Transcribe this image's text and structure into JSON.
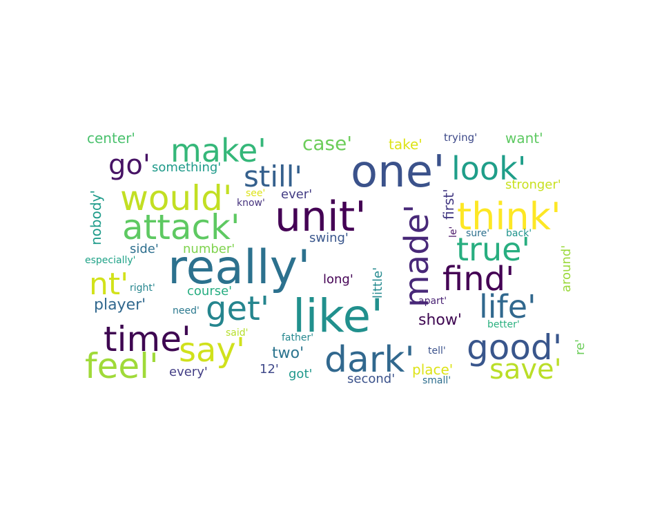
{
  "words": [
    {
      "text": "one'",
      "color": "#3b528b"
    },
    {
      "text": "really'",
      "color": "#2c718e"
    },
    {
      "text": "like'",
      "color": "#21908d"
    },
    {
      "text": "unit'",
      "color": "#440154"
    },
    {
      "text": "think'",
      "color": "#fde725"
    },
    {
      "text": "would'",
      "color": "#c2df23"
    },
    {
      "text": "attack'",
      "color": "#5ec962"
    },
    {
      "text": "make'",
      "color": "#35b779"
    },
    {
      "text": "look'",
      "color": "#1f9e89"
    },
    {
      "text": "made'",
      "color": "#482878"
    },
    {
      "text": "find'",
      "color": "#440154"
    },
    {
      "text": "true'",
      "color": "#28ae80"
    },
    {
      "text": "life'",
      "color": "#31688e"
    },
    {
      "text": "get'",
      "color": "#25858e"
    },
    {
      "text": "time'",
      "color": "#3e0751"
    },
    {
      "text": "good'",
      "color": "#39568c"
    },
    {
      "text": "dark'",
      "color": "#31688e"
    },
    {
      "text": "say'",
      "color": "#d0e11c"
    },
    {
      "text": "feel'",
      "color": "#a0da39"
    },
    {
      "text": "save'",
      "color": "#bade28"
    },
    {
      "text": "nt'",
      "color": "#d2e21b"
    },
    {
      "text": "still'",
      "color": "#35608d"
    },
    {
      "text": "go'",
      "color": "#471365"
    },
    {
      "text": "case'",
      "color": "#6ccd5a"
    },
    {
      "text": "center'",
      "color": "#4ac16d"
    },
    {
      "text": "take'",
      "color": "#dde318"
    },
    {
      "text": "trying'",
      "color": "#3e4a89"
    },
    {
      "text": "want'",
      "color": "#5ec962"
    },
    {
      "text": "something'",
      "color": "#1f9a8a"
    },
    {
      "text": "stronger'",
      "color": "#c8e020"
    },
    {
      "text": "first'",
      "color": "#443a83"
    },
    {
      "text": "see'",
      "color": "#dde318"
    },
    {
      "text": "know'",
      "color": "#46337e"
    },
    {
      "text": "ever'",
      "color": "#433d84"
    },
    {
      "text": "nobody'",
      "color": "#1e9b8a"
    },
    {
      "text": "le'",
      "color": "#481467"
    },
    {
      "text": "sure'",
      "color": "#2d708e"
    },
    {
      "text": "back'",
      "color": "#1f948c"
    },
    {
      "text": "swing'",
      "color": "#39568c"
    },
    {
      "text": "side'",
      "color": "#2e6f8e"
    },
    {
      "text": "number'",
      "color": "#7fd34e"
    },
    {
      "text": "especially'",
      "color": "#1fa287"
    },
    {
      "text": "little'",
      "color": "#23898e"
    },
    {
      "text": "around'",
      "color": "#9bd93c"
    },
    {
      "text": "long'",
      "color": "#440154"
    },
    {
      "text": "right'",
      "color": "#25858e"
    },
    {
      "text": "course'",
      "color": "#27ad81"
    },
    {
      "text": "player'",
      "color": "#31688e"
    },
    {
      "text": "need'",
      "color": "#2a788e"
    },
    {
      "text": "apart'",
      "color": "#482173"
    },
    {
      "text": "show'",
      "color": "#3e0751"
    },
    {
      "text": "better'",
      "color": "#2ab07f"
    },
    {
      "text": "re'",
      "color": "#6ccd5a"
    },
    {
      "text": "said'",
      "color": "#b5de2b"
    },
    {
      "text": "father'",
      "color": "#24878e"
    },
    {
      "text": "two'",
      "color": "#2b748e"
    },
    {
      "text": "tell'",
      "color": "#3b528b"
    },
    {
      "text": "12'",
      "color": "#3f4889"
    },
    {
      "text": "got'",
      "color": "#1f988b"
    },
    {
      "text": "place'",
      "color": "#dde318"
    },
    {
      "text": "every'",
      "color": "#433e85"
    },
    {
      "text": "second'",
      "color": "#3b528b"
    },
    {
      "text": "small'",
      "color": "#2e6e8e"
    }
  ]
}
